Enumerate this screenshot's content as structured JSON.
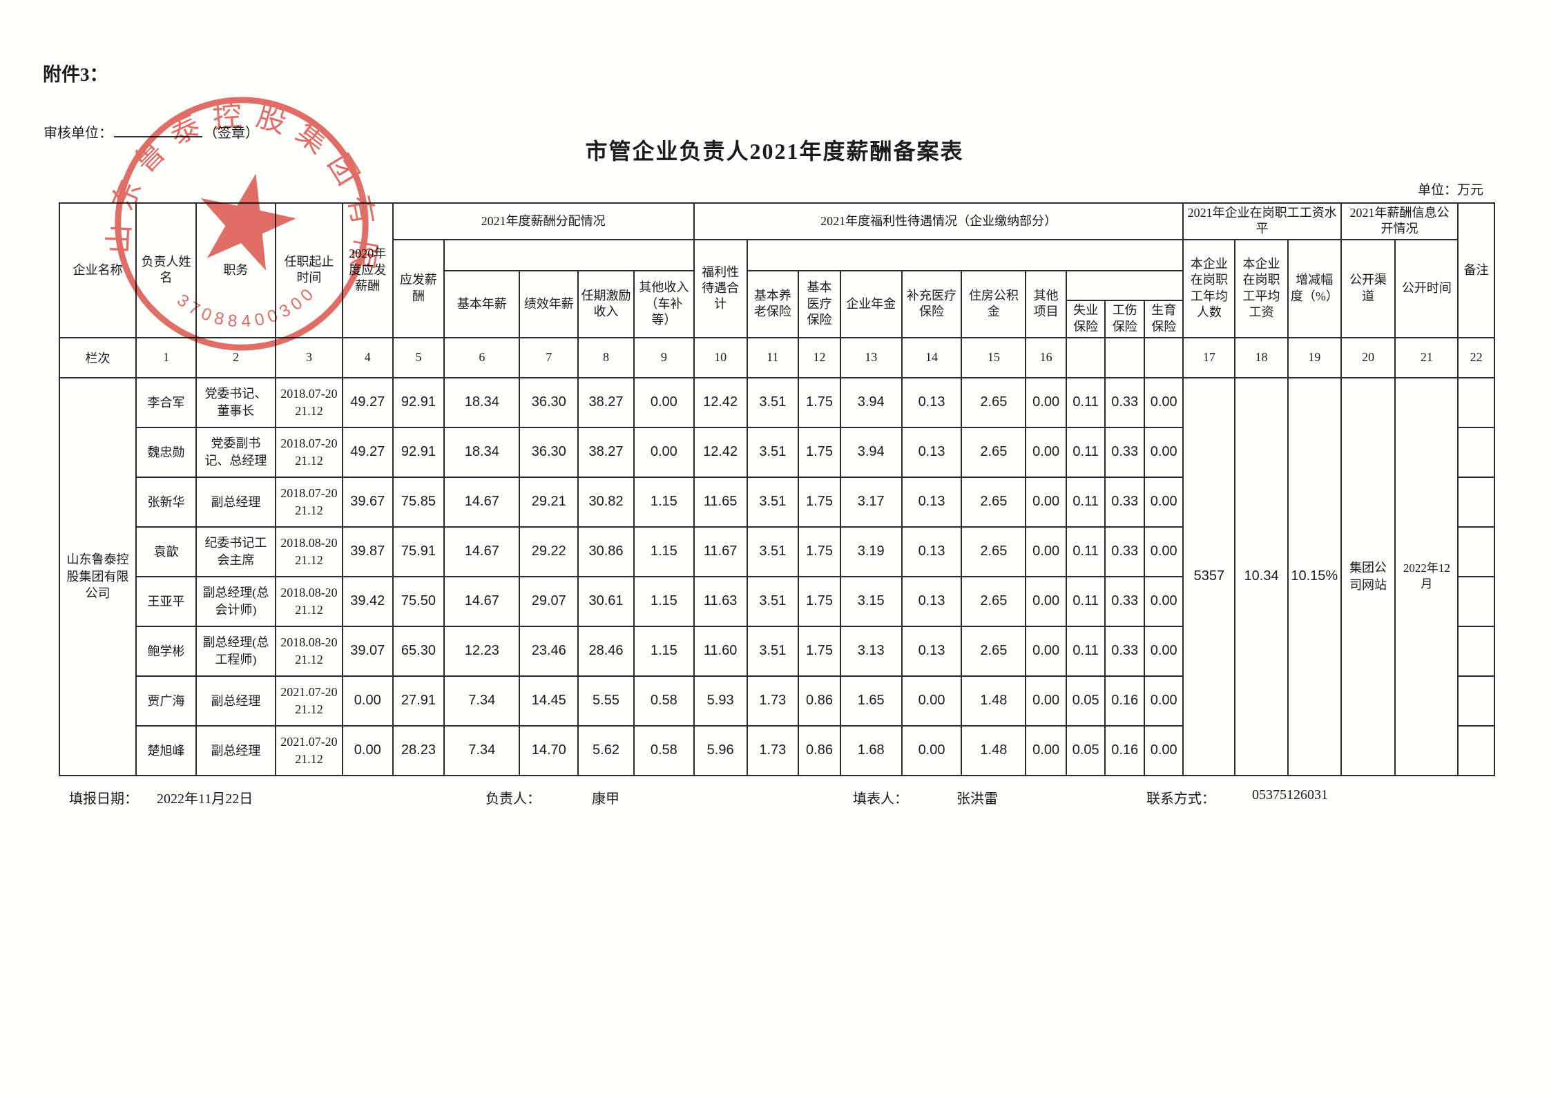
{
  "page": {
    "attachment": "附件3：",
    "title": "市管企业负责人2021年度薪酬备案表",
    "audit_unit_label": "审核单位：",
    "seal_hint": "（签章）",
    "unit_note": "单位：万元"
  },
  "stamp": {
    "ring_text": "山东鲁泰控股集团有限公司",
    "serial": "3708840030084",
    "color": "#d9453c"
  },
  "table": {
    "groups": {
      "salary": "2021年度薪酬分配情况",
      "welfare": "2021年度福利性待遇情况（企业缴纳部分）",
      "wage_level": "2021年企业在岗职工工资水平",
      "disclosure": "2021年薪酬信息公开情况"
    },
    "columns": {
      "company": "企业名称",
      "name": "负责人姓名",
      "position": "职务",
      "tenure": "任职起止时间",
      "pay2020": "2020年度应发薪酬",
      "gross_pay": "应发薪酬",
      "base_salary": "基本年薪",
      "performance_salary": "绩效年薪",
      "term_incentive": "任期激励收入",
      "other_income": "其他收入（车补等）",
      "welfare_total": "福利性待遇合计",
      "pension": "基本养老保险",
      "medical": "基本医疗保险",
      "annuity": "企业年金",
      "supp_medical": "补充医疗保险",
      "housing_fund": "住房公积金",
      "other_items": "其他项目",
      "unemployment": "失业保险",
      "injury": "工伤保险",
      "maternity": "生育保险",
      "staff_count": "本企业在岗职工年均人数",
      "staff_avg_wage": "本企业在岗职工平均工资",
      "change_rate": "增减幅度（%）",
      "channel": "公开渠道",
      "publish_time": "公开时间",
      "remark": "备注"
    },
    "lanci_label": "栏次",
    "lanci": [
      "1",
      "2",
      "3",
      "4",
      "5",
      "6",
      "7",
      "8",
      "9",
      "10",
      "11",
      "12",
      "13",
      "14",
      "15",
      "16",
      "",
      "",
      "",
      "17",
      "18",
      "19",
      "20",
      "21",
      "22"
    ],
    "company": "山东鲁泰控股集团有限公司",
    "rows": [
      {
        "name": "李合军",
        "position": "党委书记、董事长",
        "tenure": "2018.07-2021.12",
        "values": [
          "49.27",
          "92.91",
          "18.34",
          "36.30",
          "38.27",
          "0.00",
          "12.42",
          "3.51",
          "1.75",
          "3.94",
          "0.13",
          "2.65",
          "0.00",
          "0.11",
          "0.33",
          "0.00"
        ]
      },
      {
        "name": "魏忠勋",
        "position": "党委副书记、总经理",
        "tenure": "2018.07-2021.12",
        "values": [
          "49.27",
          "92.91",
          "18.34",
          "36.30",
          "38.27",
          "0.00",
          "12.42",
          "3.51",
          "1.75",
          "3.94",
          "0.13",
          "2.65",
          "0.00",
          "0.11",
          "0.33",
          "0.00"
        ]
      },
      {
        "name": "张新华",
        "position": "副总经理",
        "tenure": "2018.07-2021.12",
        "values": [
          "39.67",
          "75.85",
          "14.67",
          "29.21",
          "30.82",
          "1.15",
          "11.65",
          "3.51",
          "1.75",
          "3.17",
          "0.13",
          "2.65",
          "0.00",
          "0.11",
          "0.33",
          "0.00"
        ]
      },
      {
        "name": "袁歆",
        "position": "纪委书记工会主席",
        "tenure": "2018.08-2021.12",
        "values": [
          "39.87",
          "75.91",
          "14.67",
          "29.22",
          "30.86",
          "1.15",
          "11.67",
          "3.51",
          "1.75",
          "3.19",
          "0.13",
          "2.65",
          "0.00",
          "0.11",
          "0.33",
          "0.00"
        ]
      },
      {
        "name": "王亚平",
        "position": "副总经理(总会计师)",
        "tenure": "2018.08-2021.12",
        "values": [
          "39.42",
          "75.50",
          "14.67",
          "29.07",
          "30.61",
          "1.15",
          "11.63",
          "3.51",
          "1.75",
          "3.15",
          "0.13",
          "2.65",
          "0.00",
          "0.11",
          "0.33",
          "0.00"
        ]
      },
      {
        "name": "鲍学彬",
        "position": "副总经理(总工程师)",
        "tenure": "2018.08-2021.12",
        "values": [
          "39.07",
          "65.30",
          "12.23",
          "23.46",
          "28.46",
          "1.15",
          "11.60",
          "3.51",
          "1.75",
          "3.13",
          "0.13",
          "2.65",
          "0.00",
          "0.11",
          "0.33",
          "0.00"
        ]
      },
      {
        "name": "贾广海",
        "position": "副总经理",
        "tenure": "2021.07-2021.12",
        "values": [
          "0.00",
          "27.91",
          "7.34",
          "14.45",
          "5.55",
          "0.58",
          "5.93",
          "1.73",
          "0.86",
          "1.65",
          "0.00",
          "1.48",
          "0.00",
          "0.05",
          "0.16",
          "0.00"
        ]
      },
      {
        "name": "楚旭峰",
        "position": "副总经理",
        "tenure": "2021.07-2021.12",
        "values": [
          "0.00",
          "28.23",
          "7.34",
          "14.70",
          "5.62",
          "0.58",
          "5.96",
          "1.73",
          "0.86",
          "1.68",
          "0.00",
          "1.48",
          "0.00",
          "0.05",
          "0.16",
          "0.00"
        ]
      }
    ],
    "merged": {
      "staff_count": "5357",
      "staff_avg_wage": "10.34",
      "change_rate": "10.15%",
      "channel": "集团公司网站",
      "publish_time": "2022年12月"
    }
  },
  "footer": {
    "date_label": "填报日期：",
    "date": "2022年11月22日",
    "manager_label": "负责人：",
    "manager": "康甲",
    "preparer_label": "填表人：",
    "preparer": "张洪雷",
    "contact_label": "联系方式：",
    "contact": "05375126031"
  }
}
